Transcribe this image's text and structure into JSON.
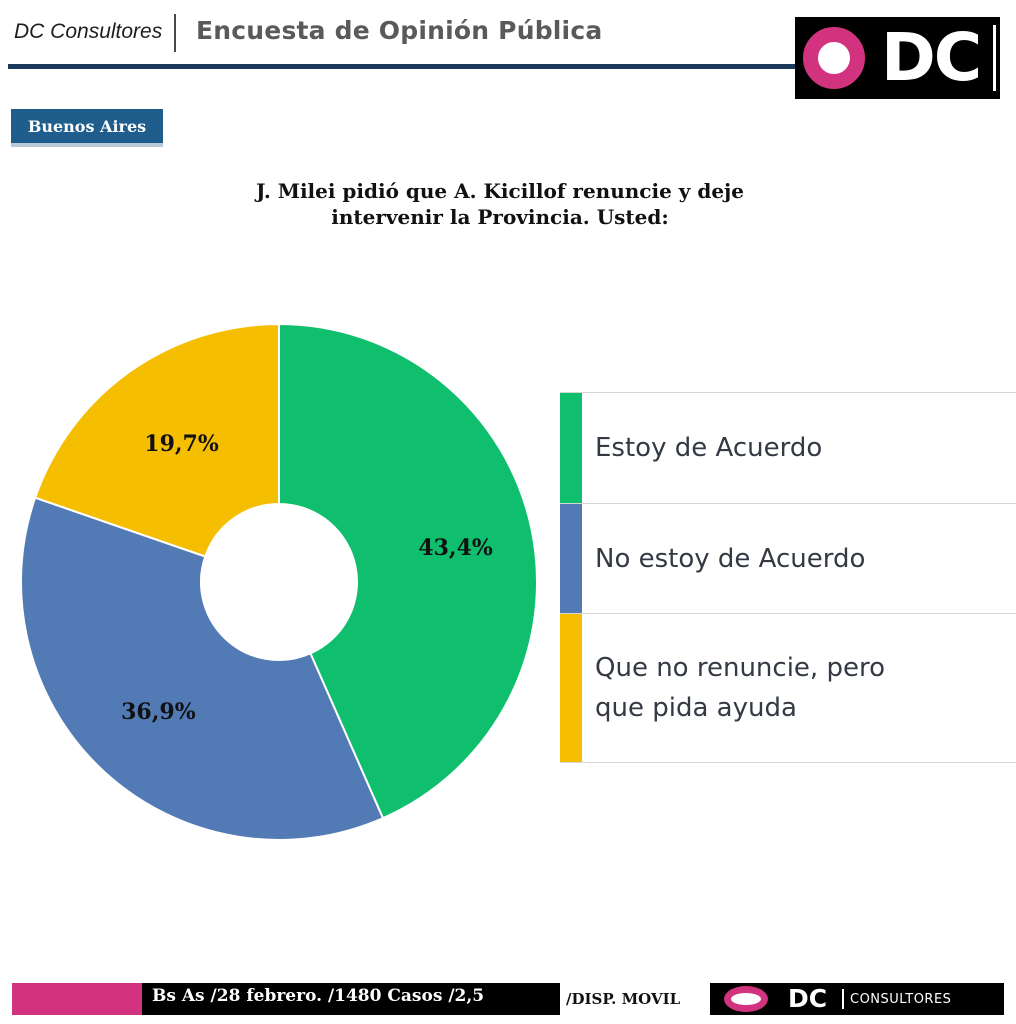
{
  "header": {
    "brand": "DC Consultores",
    "title": "Encuesta de Opinión Pública",
    "logo_text": "DC"
  },
  "region": "Buenos Aires",
  "colors": {
    "green": "#0fbf6d",
    "blue": "#527bb6",
    "yellow": "#f6be00",
    "pink": "#d2337f",
    "navy": "#1c3a5e"
  },
  "chart_data": {
    "type": "pie",
    "donut": true,
    "title": "J. Milei pidió que A. Kicillof renuncie y deje intervenir la Provincia. Usted:",
    "title_line1": "J. Milei pidió que A. Kicillof renuncie y deje",
    "title_line2": "intervenir la Provincia. Usted:",
    "categories": [
      "Estoy de Acuerdo",
      "No estoy de Acuerdo",
      "Que no renuncie, pero que pida ayuda"
    ],
    "values": [
      43.4,
      36.9,
      19.7
    ],
    "value_labels": [
      "43,4%",
      "36,9%",
      "19,7%"
    ],
    "legend_labels": [
      "Estoy de Acuerdo",
      "No estoy de Acuerdo",
      "Que no renuncie, pero\nque pida ayuda"
    ],
    "colors": [
      "#0fbf6d",
      "#527bb6",
      "#f6be00"
    ],
    "legend_position": "right"
  },
  "footer": {
    "left": "Bs As /28 febrero. /1480 Casos /2,5",
    "mid": "/DISP. MOVIL",
    "logo_text": "DC",
    "consultores": "CONSULTORES"
  }
}
